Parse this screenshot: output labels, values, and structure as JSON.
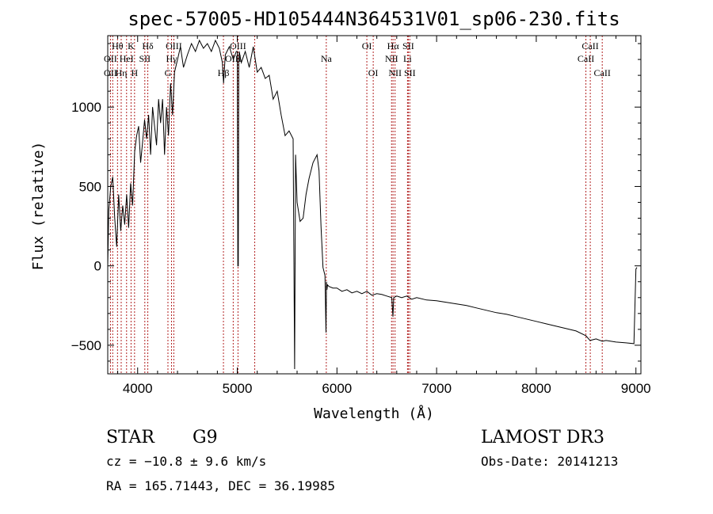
{
  "chart_data": {
    "type": "line",
    "title": "spec-57005-HD105444N364531V01_sp06-230.fits",
    "xlabel": "Wavelength (Å)",
    "ylabel": "Flux (relative)",
    "xlim": [
      3700,
      9050
    ],
    "ylim": [
      -680,
      1450
    ],
    "xticks": [
      4000,
      5000,
      6000,
      7000,
      8000,
      9000
    ],
    "yticks": [
      -500,
      0,
      500,
      1000
    ],
    "series": [
      {
        "name": "spectrum",
        "x": [
          3700,
          3710,
          3730,
          3750,
          3770,
          3790,
          3810,
          3830,
          3850,
          3870,
          3890,
          3910,
          3930,
          3950,
          3970,
          3990,
          4010,
          4030,
          4050,
          4070,
          4090,
          4110,
          4130,
          4150,
          4170,
          4190,
          4210,
          4230,
          4250,
          4270,
          4290,
          4310,
          4330,
          4350,
          4370,
          4400,
          4430,
          4460,
          4500,
          4540,
          4580,
          4620,
          4660,
          4700,
          4740,
          4780,
          4820,
          4850,
          4862,
          4880,
          4920,
          4960,
          4990,
          5000,
          5005,
          5010,
          5015,
          5020,
          5040,
          5080,
          5120,
          5160,
          5200,
          5240,
          5280,
          5320,
          5360,
          5400,
          5440,
          5480,
          5520,
          5560,
          5575,
          5585,
          5600,
          5630,
          5660,
          5690,
          5720,
          5760,
          5800,
          5820,
          5840,
          5860,
          5880,
          5890,
          5895,
          5900,
          5905,
          5920,
          5960,
          6000,
          6050,
          6100,
          6150,
          6200,
          6250,
          6300,
          6350,
          6400,
          6450,
          6500,
          6550,
          6562,
          6570,
          6600,
          6650,
          6700,
          6750,
          6800,
          6900,
          7000,
          7100,
          7200,
          7300,
          7400,
          7500,
          7600,
          7700,
          7800,
          7900,
          8000,
          8100,
          8200,
          8300,
          8400,
          8498,
          8540,
          8600,
          8662,
          8700,
          8800,
          8900,
          8980,
          9000,
          9010
        ],
        "values": [
          0,
          350,
          500,
          560,
          300,
          120,
          450,
          220,
          380,
          260,
          450,
          240,
          520,
          380,
          720,
          820,
          880,
          650,
          780,
          920,
          800,
          950,
          700,
          1000,
          880,
          760,
          1050,
          900,
          1050,
          700,
          1000,
          820,
          1150,
          950,
          1220,
          1300,
          1380,
          1250,
          1330,
          1400,
          1350,
          1420,
          1370,
          1400,
          1350,
          1420,
          1370,
          1280,
          1150,
          1330,
          1380,
          1300,
          1350,
          1350,
          0,
          0,
          1300,
          1350,
          1280,
          1350,
          1250,
          1380,
          1220,
          1250,
          1180,
          1200,
          1050,
          1100,
          950,
          820,
          850,
          800,
          -650,
          700,
          400,
          280,
          300,
          450,
          550,
          650,
          700,
          600,
          250,
          -10,
          -60,
          -420,
          -100,
          -150,
          -120,
          -130,
          -140,
          -140,
          -160,
          -150,
          -170,
          -160,
          -175,
          -160,
          -185,
          -175,
          -180,
          -190,
          -200,
          -320,
          -200,
          -190,
          -200,
          -190,
          -210,
          -200,
          -215,
          -220,
          -230,
          -240,
          -250,
          -265,
          -280,
          -295,
          -305,
          -320,
          -335,
          -350,
          -365,
          -380,
          -395,
          -410,
          -440,
          -470,
          -460,
          -475,
          -470,
          -480,
          -485,
          -490,
          -20,
          -10
        ]
      }
    ],
    "spectral_lines": [
      {
        "label": "Hθ",
        "wavelength": 3798,
        "row": 1
      },
      {
        "label": "OII",
        "wavelength": 3727,
        "row": 2
      },
      {
        "label": "OII",
        "wavelength": 3727,
        "row": 3
      },
      {
        "label": "Hη",
        "wavelength": 3835,
        "row": 3
      },
      {
        "label": "K",
        "wavelength": 3934,
        "row": 1
      },
      {
        "label": "HeI",
        "wavelength": 3889,
        "row": 2
      },
      {
        "label": "H",
        "wavelength": 3969,
        "row": 3
      },
      {
        "label": "SII",
        "wavelength": 4072,
        "row": 2
      },
      {
        "label": "Hδ",
        "wavelength": 4102,
        "row": 1
      },
      {
        "label": "OIII",
        "wavelength": 4363,
        "row": 1
      },
      {
        "label": "Hγ",
        "wavelength": 4340,
        "row": 2
      },
      {
        "label": "G",
        "wavelength": 4304,
        "row": 3
      },
      {
        "label": "OIII",
        "wavelength": 5007,
        "row": 1
      },
      {
        "label": "OIII",
        "wavelength": 4959,
        "row": 2
      },
      {
        "label": "Hβ",
        "wavelength": 4861,
        "row": 3
      },
      {
        "label": "Na",
        "wavelength": 5893,
        "row": 2
      },
      {
        "label": "OI",
        "wavelength": 6300,
        "row": 1
      },
      {
        "label": "OI",
        "wavelength": 6364,
        "row": 3
      },
      {
        "label": "Hα",
        "wavelength": 6563,
        "row": 1
      },
      {
        "label": "NII",
        "wavelength": 6548,
        "row": 2
      },
      {
        "label": "NII",
        "wavelength": 6583,
        "row": 3
      },
      {
        "label": "SII",
        "wavelength": 6716,
        "row": 1
      },
      {
        "label": "Li",
        "wavelength": 6708,
        "row": 2
      },
      {
        "label": "SII",
        "wavelength": 6731,
        "row": 3
      },
      {
        "label": "CaII",
        "wavelength": 8542,
        "row": 1
      },
      {
        "label": "CaII",
        "wavelength": 8498,
        "row": 2
      },
      {
        "label": "CaII",
        "wavelength": 8662,
        "row": 3
      }
    ],
    "extra_line_wavelengths": [
      3750,
      5175
    ]
  },
  "info": {
    "object_class": "STAR",
    "subclass": "G9",
    "survey": "LAMOST DR3",
    "cz": "cz = −10.8 ± 9.6 km/s",
    "obs_date": "Obs-Date: 20141213",
    "coords": "RA = 165.71443, DEC =  36.19985"
  },
  "colors": {
    "spectrum": "#000000",
    "line_marker": "#b22222",
    "axis": "#000000"
  }
}
